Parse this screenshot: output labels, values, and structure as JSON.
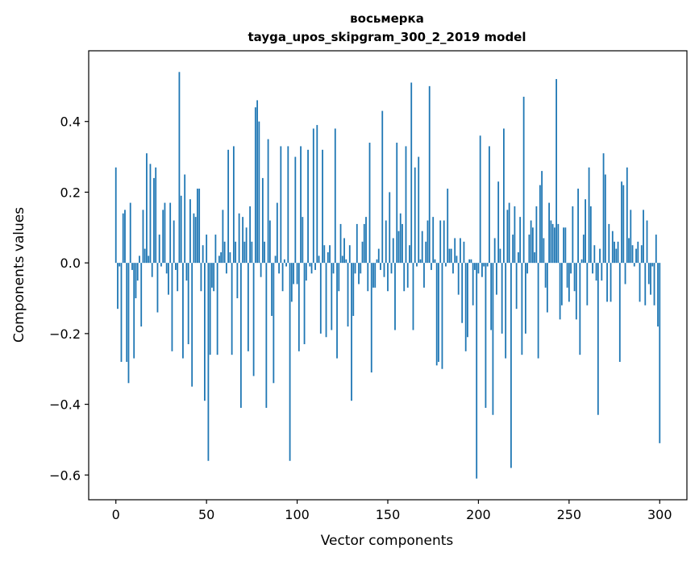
{
  "chart_data": {
    "type": "bar",
    "title": "восьмерка",
    "subtitle": "tayga_upos_skipgram_300_2_2019 model",
    "xlabel": "Vector components",
    "ylabel": "Components values",
    "xlim": [
      -15,
      315
    ],
    "ylim": [
      -0.67,
      0.6
    ],
    "xticks": [
      0,
      50,
      100,
      150,
      200,
      250,
      300
    ],
    "yticks": [
      -0.6,
      -0.4,
      -0.2,
      0.0,
      0.2,
      0.4
    ],
    "xtick_labels": [
      "0",
      "50",
      "100",
      "150",
      "200",
      "250",
      "300"
    ],
    "ytick_labels": [
      "−0.6",
      "−0.4",
      "−0.2",
      "0.0",
      "0.2",
      "0.4"
    ],
    "grid": false,
    "color": "#1f77b4",
    "values": [
      0.27,
      -0.13,
      -0.01,
      -0.28,
      0.14,
      0.15,
      -0.28,
      -0.34,
      0.17,
      -0.02,
      -0.27,
      -0.1,
      -0.05,
      0.02,
      -0.18,
      0.15,
      0.04,
      0.31,
      0.02,
      0.28,
      -0.04,
      0.24,
      0.27,
      -0.14,
      0.08,
      -0.01,
      0.15,
      0.17,
      -0.03,
      -0.09,
      0.17,
      -0.25,
      0.12,
      -0.02,
      -0.08,
      0.54,
      0.19,
      -0.27,
      0.25,
      -0.05,
      -0.23,
      0.18,
      -0.35,
      0.14,
      0.13,
      0.21,
      0.21,
      -0.08,
      0.05,
      -0.39,
      0.08,
      -0.56,
      -0.26,
      -0.07,
      -0.08,
      0.08,
      -0.26,
      0.02,
      0.03,
      0.15,
      0.06,
      -0.03,
      0.32,
      0.03,
      -0.26,
      0.33,
      0.06,
      -0.1,
      0.14,
      -0.41,
      0.13,
      0.06,
      0.1,
      -0.25,
      0.16,
      0.06,
      -0.32,
      0.44,
      0.46,
      0.4,
      -0.04,
      0.24,
      0.06,
      -0.41,
      0.35,
      0.12,
      -0.15,
      -0.34,
      0.02,
      0.17,
      -0.03,
      0.33,
      -0.08,
      0.01,
      -0.01,
      0.33,
      -0.56,
      -0.11,
      -0.06,
      0.3,
      -0.06,
      -0.25,
      0.33,
      0.13,
      -0.23,
      -0.05,
      0.32,
      -0.01,
      -0.03,
      0.38,
      -0.02,
      0.39,
      0.02,
      -0.2,
      0.32,
      0.05,
      -0.21,
      0.03,
      0.05,
      -0.19,
      -0.03,
      0.38,
      -0.27,
      -0.08,
      0.11,
      0.02,
      0.07,
      0.01,
      -0.18,
      0.05,
      -0.39,
      -0.15,
      -0.03,
      0.11,
      -0.06,
      -0.03,
      0.06,
      0.11,
      0.13,
      -0.08,
      0.34,
      -0.31,
      -0.07,
      -0.07,
      0.01,
      0.04,
      -0.02,
      0.43,
      -0.04,
      0.12,
      -0.08,
      0.2,
      -0.03,
      0.07,
      -0.19,
      0.34,
      0.09,
      0.14,
      0.11,
      -0.08,
      0.33,
      -0.07,
      0.05,
      0.51,
      -0.19,
      0.27,
      -0.01,
      0.3,
      0.01,
      0.09,
      -0.07,
      0.06,
      0.12,
      0.5,
      -0.02,
      0.13,
      0.01,
      -0.29,
      -0.28,
      0.12,
      -0.3,
      0.12,
      -0.01,
      0.21,
      0.04,
      0.04,
      -0.03,
      0.07,
      0.02,
      -0.09,
      0.07,
      -0.17,
      0.06,
      -0.25,
      -0.21,
      0.01,
      0.01,
      -0.12,
      -0.02,
      -0.61,
      -0.03,
      0.36,
      -0.04,
      -0.01,
      -0.41,
      -0.01,
      0.33,
      -0.19,
      -0.43,
      0.07,
      -0.09,
      0.23,
      0.04,
      -0.2,
      0.38,
      -0.27,
      0.15,
      0.17,
      -0.58,
      0.08,
      0.16,
      -0.13,
      0.03,
      0.13,
      -0.26,
      0.47,
      -0.2,
      -0.03,
      0.08,
      0.12,
      0.1,
      0.03,
      0.16,
      -0.27,
      0.22,
      0.26,
      0.07,
      -0.07,
      -0.14,
      0.17,
      0.12,
      0.11,
      0.1,
      0.52,
      0.11,
      -0.16,
      -0.12,
      0.1,
      0.1,
      -0.07,
      -0.11,
      -0.03,
      0.16,
      -0.08,
      -0.16,
      0.21,
      -0.26,
      0.01,
      0.08,
      0.18,
      -0.12,
      0.27,
      0.16,
      -0.03,
      0.05,
      -0.05,
      -0.43,
      0.04,
      -0.05,
      0.31,
      0.25,
      -0.11,
      0.11,
      -0.11,
      0.09,
      0.06,
      0.04,
      0.06,
      -0.28,
      0.23,
      0.22,
      -0.06,
      0.27,
      0.07,
      0.15,
      0.05,
      -0.01,
      0.04,
      0.06,
      -0.11,
      0.05,
      0.15,
      -0.12,
      0.12,
      -0.06,
      -0.09,
      -0.01,
      -0.12,
      0.08,
      -0.18,
      -0.51
    ]
  }
}
